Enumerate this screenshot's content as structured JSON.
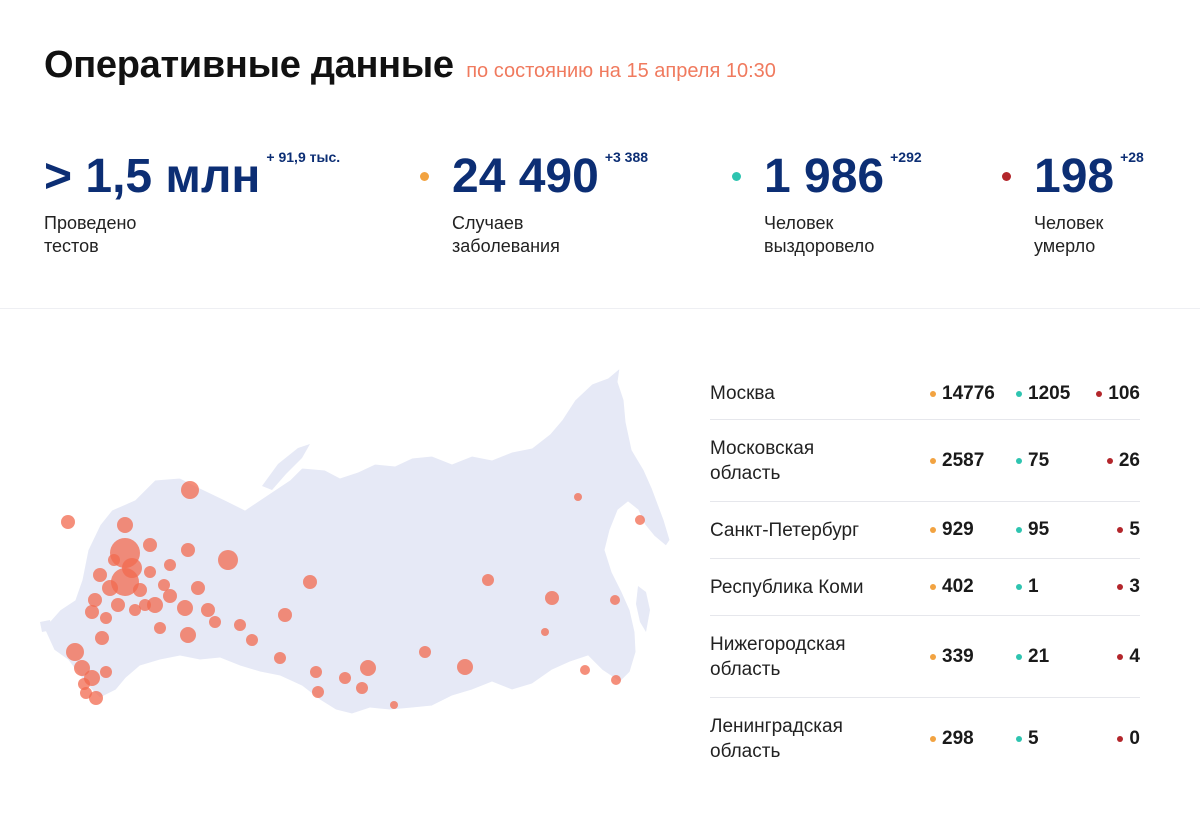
{
  "header": {
    "title": "Оперативные данные",
    "subtitle": "по состоянию на 15 апреля 10:30"
  },
  "colors": {
    "cases": "#f2a341",
    "recovered": "#2ec4b0",
    "deaths": "#b3262b",
    "value_blue": "#0c2e74",
    "map_land": "#e6e9f6",
    "map_circle": "#f26a4f"
  },
  "stats": [
    {
      "value": "> 1,5 млн",
      "delta": "+ 91,9 тыс.",
      "label": "Проведено\nтестов"
    },
    {
      "value": "24 490",
      "delta": "+3 388",
      "label": "Случаев\nзаболевания"
    },
    {
      "value": "1 986",
      "delta": "+292",
      "label": "Человек\nвыздоровело"
    },
    {
      "value": "198",
      "delta": "+28",
      "label": "Человек\nумерло"
    }
  ],
  "regions": [
    {
      "name": "Москва",
      "cases": "14776",
      "recovered": "1205",
      "deaths": "106"
    },
    {
      "name": "Московская\nобласть",
      "cases": "2587",
      "recovered": "75",
      "deaths": "26"
    },
    {
      "name": "Санкт-Петербург",
      "cases": "929",
      "recovered": "95",
      "deaths": "5"
    },
    {
      "name": "Республика Коми",
      "cases": "402",
      "recovered": "1",
      "deaths": "3"
    },
    {
      "name": "Нижегородская\nобласть",
      "cases": "339",
      "recovered": "21",
      "deaths": "4"
    },
    {
      "name": "Ленинградская\nобласть",
      "cases": "298",
      "recovered": "5",
      "deaths": "0"
    }
  ]
}
